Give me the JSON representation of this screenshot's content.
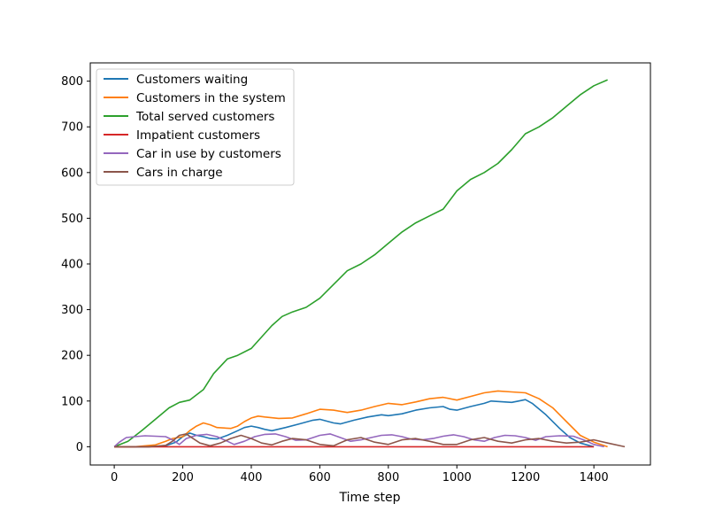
{
  "chart_data": {
    "type": "line",
    "xlabel": "Time step",
    "ylabel": "",
    "xlim": [
      -70,
      1565
    ],
    "ylim": [
      -40,
      840
    ],
    "xticks": [
      0,
      200,
      400,
      600,
      800,
      1000,
      1200,
      1400
    ],
    "yticks": [
      0,
      100,
      200,
      300,
      400,
      500,
      600,
      700,
      800
    ],
    "legend_position": "top-left",
    "grid": false,
    "series": [
      {
        "name": "Customers waiting",
        "color": "#1f77b4",
        "x": [
          0,
          100,
          150,
          180,
          200,
          220,
          240,
          260,
          280,
          300,
          330,
          360,
          380,
          400,
          420,
          440,
          460,
          500,
          540,
          580,
          600,
          640,
          660,
          700,
          740,
          780,
          800,
          840,
          880,
          920,
          960,
          980,
          1000,
          1040,
          1080,
          1100,
          1140,
          1160,
          1180,
          1200,
          1220,
          1260,
          1300,
          1330,
          1360,
          1400
        ],
        "y": [
          0,
          0,
          2,
          10,
          22,
          30,
          25,
          22,
          18,
          17,
          25,
          35,
          42,
          45,
          42,
          38,
          35,
          42,
          50,
          58,
          60,
          52,
          50,
          58,
          65,
          70,
          68,
          72,
          80,
          85,
          88,
          82,
          80,
          88,
          95,
          100,
          98,
          97,
          100,
          103,
          95,
          70,
          40,
          20,
          8,
          0
        ]
      },
      {
        "name": "Customers in the system",
        "color": "#ff7f0e",
        "x": [
          0,
          60,
          120,
          150,
          170,
          200,
          220,
          240,
          260,
          280,
          300,
          340,
          360,
          380,
          400,
          420,
          440,
          480,
          520,
          560,
          600,
          640,
          680,
          720,
          760,
          800,
          840,
          880,
          920,
          960,
          1000,
          1040,
          1080,
          1120,
          1160,
          1200,
          1240,
          1280,
          1320,
          1360,
          1400,
          1440
        ],
        "y": [
          0,
          0,
          4,
          12,
          18,
          22,
          35,
          45,
          52,
          48,
          42,
          40,
          45,
          55,
          63,
          67,
          65,
          62,
          63,
          72,
          82,
          80,
          75,
          80,
          88,
          95,
          92,
          98,
          105,
          108,
          102,
          110,
          118,
          122,
          120,
          118,
          105,
          85,
          55,
          25,
          10,
          0
        ]
      },
      {
        "name": "Total served customers",
        "color": "#2ca02c",
        "x": [
          0,
          40,
          80,
          120,
          160,
          190,
          220,
          260,
          290,
          330,
          360,
          400,
          430,
          460,
          490,
          520,
          560,
          600,
          640,
          680,
          720,
          760,
          800,
          840,
          880,
          920,
          960,
          1000,
          1040,
          1080,
          1120,
          1160,
          1200,
          1240,
          1280,
          1320,
          1360,
          1400,
          1440
        ],
        "y": [
          0,
          12,
          35,
          60,
          85,
          97,
          102,
          125,
          160,
          192,
          200,
          215,
          240,
          265,
          285,
          295,
          305,
          325,
          355,
          385,
          400,
          420,
          445,
          470,
          490,
          505,
          520,
          560,
          585,
          600,
          620,
          650,
          685,
          700,
          720,
          745,
          770,
          790,
          803
        ]
      },
      {
        "name": "Impatient customers",
        "color": "#d62728",
        "x": [
          0,
          200,
          400,
          600,
          800,
          1000,
          1200,
          1400
        ],
        "y": [
          0,
          0,
          0,
          0,
          0,
          0,
          0,
          0
        ]
      },
      {
        "name": "Car in use by customers",
        "color": "#9467bd",
        "x": [
          0,
          15,
          35,
          60,
          90,
          120,
          150,
          170,
          190,
          210,
          240,
          270,
          300,
          330,
          350,
          380,
          410,
          440,
          470,
          500,
          530,
          560,
          600,
          630,
          660,
          690,
          720,
          750,
          780,
          810,
          840,
          870,
          900,
          930,
          960,
          990,
          1020,
          1050,
          1080,
          1110,
          1140,
          1170,
          1200,
          1230,
          1260,
          1300,
          1340,
          1370,
          1400,
          1430
        ],
        "y": [
          0,
          10,
          20,
          22,
          24,
          23,
          22,
          15,
          5,
          18,
          25,
          27,
          22,
          12,
          5,
          12,
          22,
          27,
          28,
          22,
          14,
          15,
          25,
          28,
          20,
          12,
          15,
          20,
          25,
          26,
          22,
          16,
          15,
          18,
          23,
          26,
          22,
          15,
          12,
          20,
          25,
          24,
          20,
          14,
          22,
          24,
          23,
          15,
          5,
          0
        ]
      },
      {
        "name": "Cars in charge",
        "color": "#8c564b",
        "x": [
          0,
          100,
          150,
          170,
          190,
          210,
          230,
          250,
          280,
          310,
          340,
          370,
          400,
          430,
          460,
          490,
          520,
          560,
          600,
          640,
          680,
          720,
          760,
          800,
          840,
          880,
          920,
          960,
          1000,
          1040,
          1080,
          1120,
          1160,
          1200,
          1240,
          1280,
          1320,
          1360,
          1400,
          1440,
          1490
        ],
        "y": [
          0,
          0,
          3,
          12,
          25,
          28,
          18,
          8,
          2,
          8,
          18,
          25,
          18,
          8,
          4,
          12,
          18,
          15,
          5,
          2,
          15,
          20,
          10,
          5,
          15,
          18,
          12,
          5,
          5,
          15,
          20,
          12,
          8,
          15,
          18,
          12,
          8,
          10,
          15,
          8,
          0
        ]
      }
    ]
  }
}
